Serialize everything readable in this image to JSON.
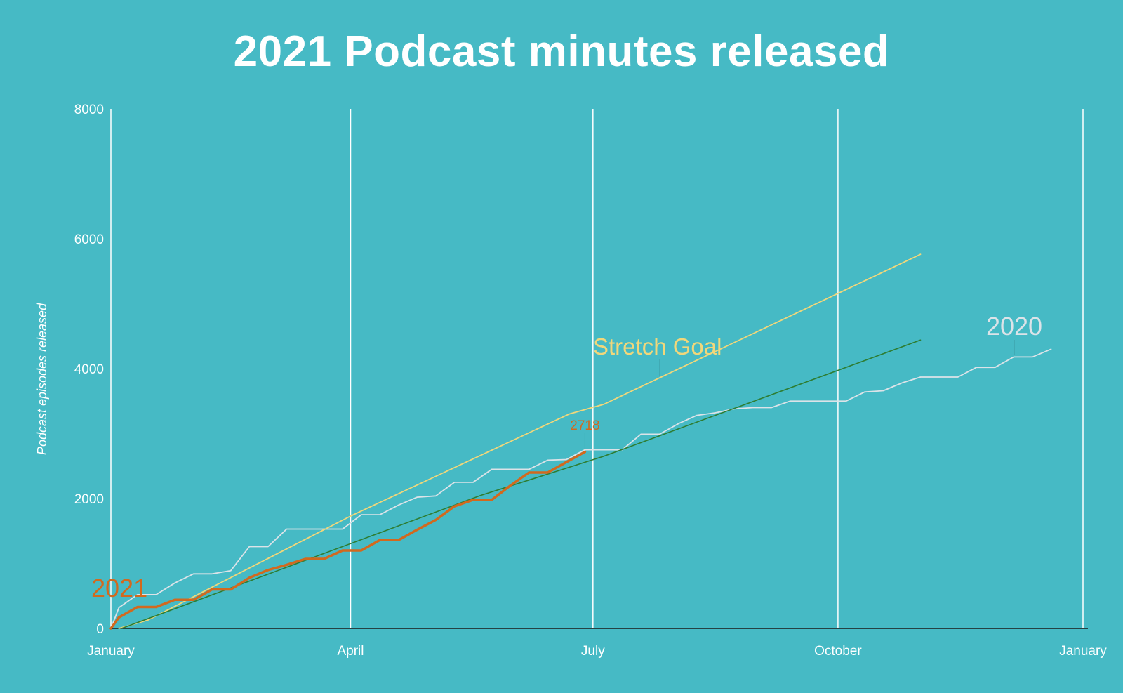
{
  "title": "2021 Podcast minutes released",
  "chart_data": {
    "type": "line",
    "title": "2021 Podcast minutes released",
    "ylabel": "Podcast episodes released",
    "xlabel": "",
    "ylim": [
      0,
      8000
    ],
    "yticks": [
      0,
      2000,
      4000,
      6000,
      8000
    ],
    "xlim": [
      "2021-01-01",
      "2022-01-01"
    ],
    "xticks": [
      {
        "date": "2021-01-01",
        "label": "January"
      },
      {
        "date": "2021-04-01",
        "label": "April"
      },
      {
        "date": "2021-07-01",
        "label": "July"
      },
      {
        "date": "2021-10-01",
        "label": "October"
      },
      {
        "date": "2022-01-01",
        "label": "January"
      }
    ],
    "grid": "vertical",
    "colors": {
      "background": "#46BAC5",
      "grid": "#ffffff",
      "axis": "#1a1a1a",
      "s2021": "#D2691E",
      "s2020": "#DCE3E8",
      "stretch": "#F1D77A",
      "goal": "#2E7D32"
    },
    "series": [
      {
        "name": "2020",
        "color": "#DCE3E8",
        "label": "2020",
        "points": [
          [
            "2021-01-01",
            0
          ],
          [
            "2021-01-04",
            320
          ],
          [
            "2021-01-11",
            520
          ],
          [
            "2021-01-18",
            520
          ],
          [
            "2021-01-25",
            700
          ],
          [
            "2021-02-01",
            840
          ],
          [
            "2021-02-08",
            840
          ],
          [
            "2021-02-15",
            890
          ],
          [
            "2021-02-22",
            1260
          ],
          [
            "2021-03-01",
            1260
          ],
          [
            "2021-03-08",
            1530
          ],
          [
            "2021-03-15",
            1530
          ],
          [
            "2021-03-22",
            1530
          ],
          [
            "2021-03-29",
            1530
          ],
          [
            "2021-04-05",
            1750
          ],
          [
            "2021-04-12",
            1750
          ],
          [
            "2021-04-19",
            1900
          ],
          [
            "2021-04-26",
            2020
          ],
          [
            "2021-05-03",
            2040
          ],
          [
            "2021-05-10",
            2250
          ],
          [
            "2021-05-17",
            2250
          ],
          [
            "2021-05-24",
            2450
          ],
          [
            "2021-05-31",
            2450
          ],
          [
            "2021-06-07",
            2450
          ],
          [
            "2021-06-14",
            2590
          ],
          [
            "2021-06-21",
            2600
          ],
          [
            "2021-06-28",
            2750
          ],
          [
            "2021-07-05",
            2750
          ],
          [
            "2021-07-12",
            2750
          ],
          [
            "2021-07-19",
            2990
          ],
          [
            "2021-07-26",
            2990
          ],
          [
            "2021-08-02",
            3150
          ],
          [
            "2021-08-09",
            3280
          ],
          [
            "2021-08-16",
            3320
          ],
          [
            "2021-08-23",
            3380
          ],
          [
            "2021-08-30",
            3400
          ],
          [
            "2021-09-06",
            3400
          ],
          [
            "2021-09-13",
            3500
          ],
          [
            "2021-09-20",
            3500
          ],
          [
            "2021-09-27",
            3500
          ],
          [
            "2021-10-04",
            3500
          ],
          [
            "2021-10-11",
            3640
          ],
          [
            "2021-10-18",
            3660
          ],
          [
            "2021-10-25",
            3780
          ],
          [
            "2021-11-01",
            3870
          ],
          [
            "2021-11-08",
            3870
          ],
          [
            "2021-11-15",
            3870
          ],
          [
            "2021-11-22",
            4020
          ],
          [
            "2021-11-29",
            4020
          ],
          [
            "2021-12-06",
            4180
          ],
          [
            "2021-12-13",
            4180
          ],
          [
            "2021-12-20",
            4300
          ]
        ]
      },
      {
        "name": "Stretch Goal",
        "color": "#F1D77A",
        "label": "Stretch Goal",
        "points": [
          [
            "2021-01-04",
            0
          ],
          [
            "2021-01-15",
            130
          ],
          [
            "2021-04-01",
            1730
          ],
          [
            "2021-06-22",
            3300
          ],
          [
            "2021-07-05",
            3450
          ],
          [
            "2021-11-01",
            5760
          ]
        ]
      },
      {
        "name": "goal",
        "color": "#2E7D32",
        "points": [
          [
            "2021-01-05",
            0
          ],
          [
            "2021-05-20",
            2050
          ],
          [
            "2021-07-05",
            2650
          ],
          [
            "2021-11-01",
            4440
          ]
        ]
      },
      {
        "name": "2021",
        "color": "#D2691E",
        "label": "2021",
        "end_label": "2718",
        "points": [
          [
            "2021-01-01",
            0
          ],
          [
            "2021-01-04",
            170
          ],
          [
            "2021-01-11",
            330
          ],
          [
            "2021-01-18",
            330
          ],
          [
            "2021-01-25",
            440
          ],
          [
            "2021-02-01",
            440
          ],
          [
            "2021-02-08",
            600
          ],
          [
            "2021-02-15",
            600
          ],
          [
            "2021-02-22",
            780
          ],
          [
            "2021-03-01",
            900
          ],
          [
            "2021-03-08",
            980
          ],
          [
            "2021-03-15",
            1070
          ],
          [
            "2021-03-22",
            1070
          ],
          [
            "2021-03-29",
            1200
          ],
          [
            "2021-04-05",
            1200
          ],
          [
            "2021-04-12",
            1360
          ],
          [
            "2021-04-19",
            1360
          ],
          [
            "2021-04-26",
            1520
          ],
          [
            "2021-05-03",
            1670
          ],
          [
            "2021-05-10",
            1880
          ],
          [
            "2021-05-17",
            1980
          ],
          [
            "2021-05-24",
            1980
          ],
          [
            "2021-05-31",
            2200
          ],
          [
            "2021-06-07",
            2400
          ],
          [
            "2021-06-14",
            2400
          ],
          [
            "2021-06-21",
            2560
          ],
          [
            "2021-06-28",
            2718
          ]
        ]
      }
    ]
  }
}
